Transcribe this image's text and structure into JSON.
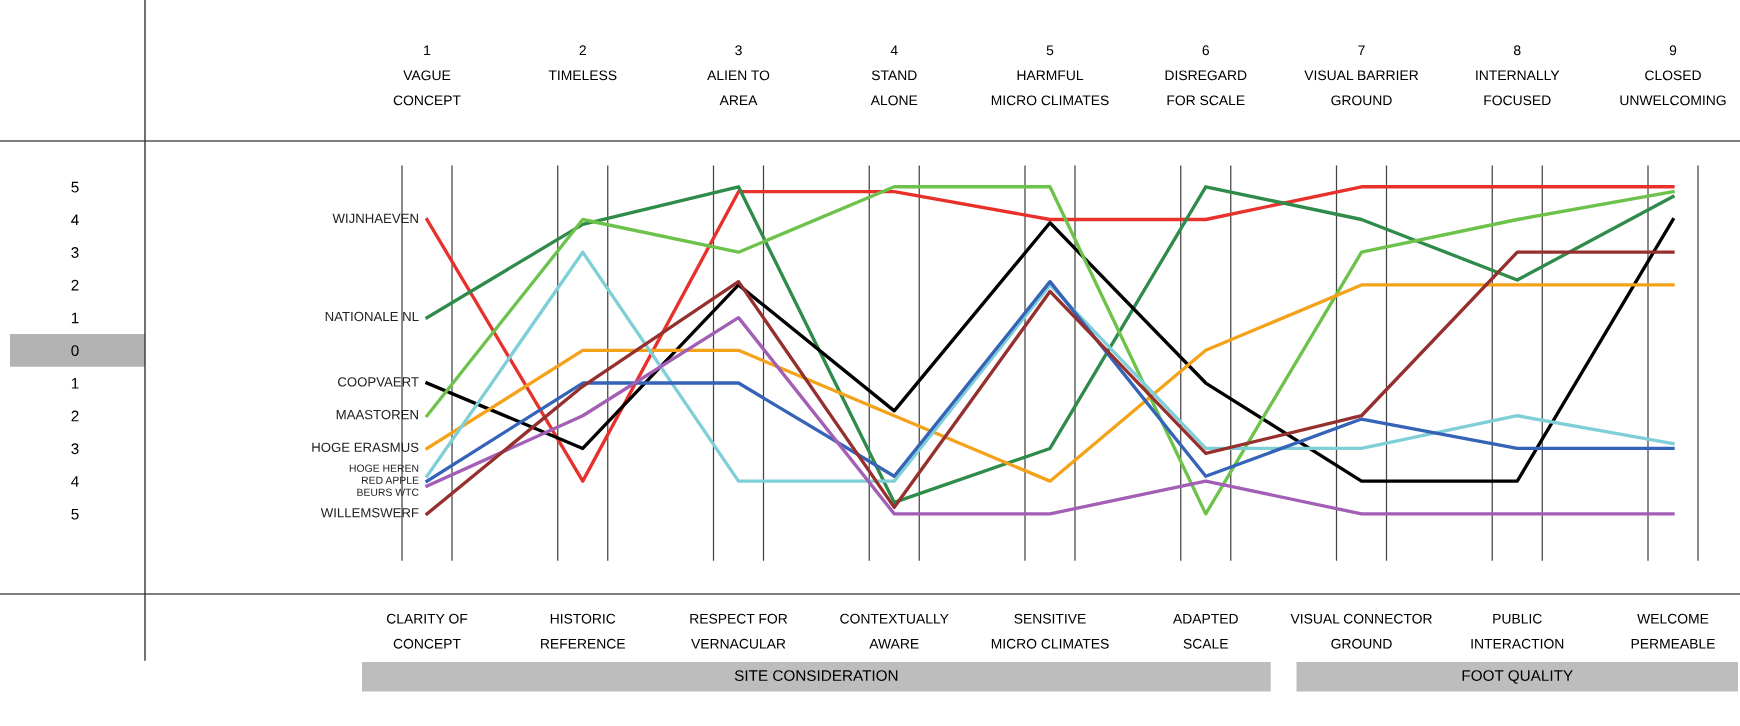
{
  "chart_data": {
    "type": "line",
    "categories": [
      "CLARITY OF\nCONCEPT",
      "HISTORIC\nREFERENCE",
      "RESPECT FOR\nVERNACULAR",
      "CONTEXTUALLY\nAWARE",
      "SENSITIVE\nMICRO CLIMATES",
      "ADAPTED\nSCALE",
      "VISUAL CONNECTOR\nGROUND",
      "PUBLIC\nINTERACTION",
      "WELCOME\nPERMEABLE"
    ],
    "series": [
      {
        "name": "WIJNHAEVEN",
        "color": "#e8312a",
        "values": [
          4,
          -4,
          4.85,
          4.85,
          4,
          4,
          5,
          5,
          5
        ]
      },
      {
        "name": "NATIONALE NL",
        "color": "#2e8b4a",
        "values": [
          1,
          3.85,
          5,
          -4.65,
          -3,
          5,
          4,
          2.15,
          4.7
        ]
      },
      {
        "name": "COOPVAERT",
        "color": "#000000",
        "values": [
          -1,
          -3,
          2,
          -1.85,
          3.9,
          -1,
          -4,
          -4,
          4
        ]
      },
      {
        "name": "MAASTOREN",
        "color": "#6cc24a",
        "values": [
          -2,
          4,
          3,
          5,
          5,
          -5,
          3,
          4,
          4.85
        ]
      },
      {
        "name": "HOGE ERASMUS",
        "color": "#f5a21b",
        "values": [
          -3,
          0,
          0,
          -2,
          -4,
          0,
          2,
          2,
          2
        ]
      },
      {
        "name": "HOGE HEREN",
        "color": "#7fcfd8",
        "values": [
          -3.85,
          3,
          -4,
          -4,
          2,
          -3,
          -3,
          -2,
          -2.85
        ]
      },
      {
        "name": "RED APPLE",
        "color": "#3563b8",
        "values": [
          -4,
          -1,
          -1,
          -3.85,
          2.1,
          -3.85,
          -2.1,
          -3,
          -3
        ]
      },
      {
        "name": "BEURS WTC",
        "color": "#a35fb5",
        "values": [
          -4.15,
          -2,
          1,
          -5,
          -5,
          -4,
          -5,
          -5,
          -5
        ]
      },
      {
        "name": "WILLEMSWERF",
        "color": "#96302e",
        "values": [
          -5,
          -1.1,
          2.1,
          -4.8,
          1.8,
          -3.15,
          -2,
          3,
          3
        ]
      }
    ],
    "ylim": [
      -7.45,
      6.4
    ],
    "yticks": [
      5,
      4,
      3,
      2,
      1,
      0,
      {
        "value": -1,
        "label": "1"
      },
      {
        "value": -2,
        "label": "2"
      },
      {
        "value": -3,
        "label": "3"
      },
      {
        "value": -4,
        "label": "4"
      },
      {
        "value": -5,
        "label": "5"
      }
    ],
    "annotations": [
      "1\nVAGUE\nCONCEPT",
      "2\nTIMELESS",
      "3\nALIEN TO\nAREA",
      "4\nSTAND\nALONE",
      "5\nHARMFUL\nMICRO CLIMATES",
      "6\nDISREGARD\nFOR SCALE",
      "7\nVISUAL BARRIER\nGROUND",
      "8\nINTERNALLY\nFOCUSED",
      "9\nCLOSED\nUNWELCOMING",
      "SITE CONSIDERATION",
      "FOOT QUALITY"
    ],
    "legend": false,
    "grid": false
  }
}
